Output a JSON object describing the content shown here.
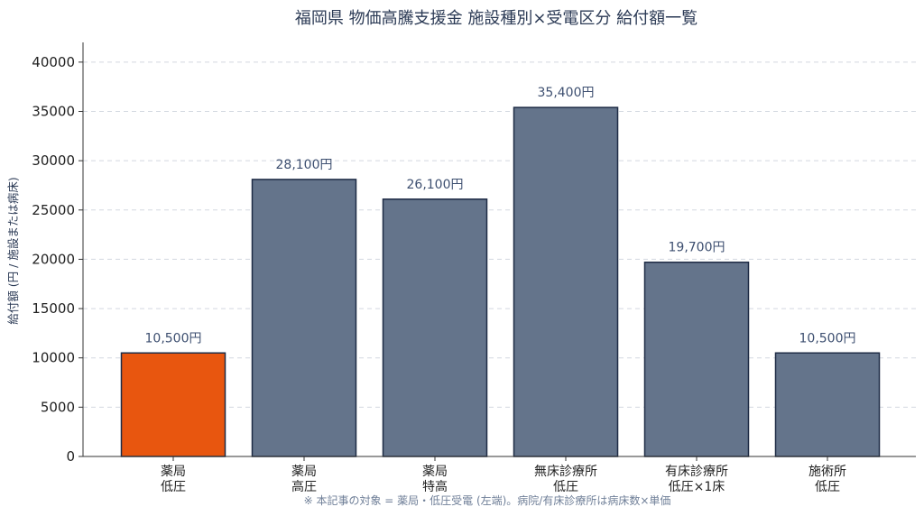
{
  "chart_data": {
    "type": "bar",
    "title": "福岡県 物価高騰支援金 施設種別×受電区分 給付額一覧",
    "ylabel": "給付額 (円 / 施設または病床)",
    "xlabel": "",
    "categories": [
      [
        "薬局",
        "低圧"
      ],
      [
        "薬局",
        "高圧"
      ],
      [
        "薬局",
        "特高"
      ],
      [
        "無床診療所",
        "低圧"
      ],
      [
        "有床診療所",
        "低圧×1床"
      ],
      [
        "施術所",
        "低圧"
      ]
    ],
    "values": [
      10500,
      28100,
      26100,
      35400,
      19700,
      10500
    ],
    "data_labels": [
      "10,500円",
      "28,100円",
      "26,100円",
      "35,400円",
      "19,700円",
      "10,500円"
    ],
    "bar_colors": [
      "#e8560f",
      "#64748b",
      "#64748b",
      "#64748b",
      "#64748b",
      "#64748b"
    ],
    "bar_edge_color": "#1e2b45",
    "ylim": [
      0,
      42000
    ],
    "yticks": [
      0,
      5000,
      10000,
      15000,
      20000,
      25000,
      30000,
      35000,
      40000
    ],
    "grid": "horizontal dashed",
    "footnote": "※ 本記事の対象 = 薬局・低圧受電 (左端)。病院/有床診療所は病床数×単価"
  }
}
